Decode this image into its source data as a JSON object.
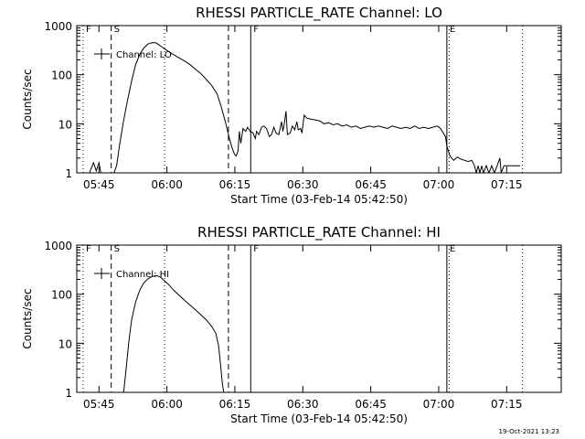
{
  "stamp": "19-Oct-2021 13:23",
  "chart_data": [
    {
      "type": "line",
      "title": "RHESSI PARTICLE_RATE Channel: LO",
      "xlabel": "Start Time (03-Feb-14 05:42:50)",
      "ylabel": "Counts/sec",
      "y_scale": "log",
      "xlim": [
        "05:40:06",
        "07:27:03"
      ],
      "ylim": [
        1,
        1000
      ],
      "xticks": [
        "05:45",
        "06:00",
        "06:15",
        "06:30",
        "06:45",
        "07:00",
        "07:15"
      ],
      "yticks": [
        "1",
        "10",
        "100",
        "1000"
      ],
      "legend": {
        "entry": "Channel: LO",
        "position": "top-left"
      },
      "markers": [
        {
          "label": "F",
          "time": "05:41:30",
          "style": "dotted",
          "text": "F"
        },
        {
          "label": "S",
          "time": "05:47:42",
          "style": "dashed",
          "text": "S"
        },
        {
          "label": "",
          "time": "05:59:30",
          "style": "dotted",
          "text": ""
        },
        {
          "label": "",
          "time": "06:13:35",
          "style": "dashed",
          "text": ""
        },
        {
          "label": "F",
          "time": "06:18:30",
          "style": "solid",
          "text": "F"
        },
        {
          "label": "E",
          "time": "07:01:48",
          "style": "solid",
          "text": "E"
        },
        {
          "label": "",
          "time": "07:02:18",
          "style": "dotted",
          "text": ""
        },
        {
          "label": "",
          "time": "07:18:30",
          "style": "dotted",
          "text": ""
        }
      ],
      "series": [
        {
          "name": "Channel: LO",
          "points": [
            [
              "05:42:54",
              1.0
            ],
            [
              "05:43:48",
              1.6
            ],
            [
              "05:44:24",
              1.1
            ],
            [
              "05:45:00",
              1.6
            ],
            [
              "05:45:36",
              0.8
            ],
            [
              "05:46:30",
              1.0
            ],
            [
              "05:47:24",
              0.8
            ],
            [
              "05:47:42",
              0.8
            ],
            [
              "05:48:18",
              1.0
            ],
            [
              "05:48:54",
              1.4
            ],
            [
              "05:49:30",
              3.5
            ],
            [
              "05:50:24",
              11
            ],
            [
              "05:51:18",
              30
            ],
            [
              "05:52:12",
              75
            ],
            [
              "05:53:06",
              160
            ],
            [
              "05:54:00",
              260
            ],
            [
              "05:54:54",
              350
            ],
            [
              "05:55:48",
              420
            ],
            [
              "05:56:42",
              450
            ],
            [
              "05:57:36",
              445
            ],
            [
              "05:58:30",
              390
            ],
            [
              "05:59:24",
              340
            ],
            [
              "06:00:18",
              300
            ],
            [
              "06:01:30",
              255
            ],
            [
              "06:02:42",
              220
            ],
            [
              "06:03:54",
              190
            ],
            [
              "06:05:06",
              160
            ],
            [
              "06:06:18",
              130
            ],
            [
              "06:07:30",
              105
            ],
            [
              "06:08:42",
              80
            ],
            [
              "06:09:54",
              60
            ],
            [
              "06:11:06",
              40
            ],
            [
              "06:12:00",
              22
            ],
            [
              "06:12:54",
              11
            ],
            [
              "06:13:48",
              5
            ],
            [
              "06:14:24",
              3.2
            ],
            [
              "06:14:54",
              2.4
            ],
            [
              "06:15:18",
              2.2
            ],
            [
              "06:15:42",
              2.8
            ],
            [
              "06:16:00",
              7
            ],
            [
              "06:16:18",
              4
            ],
            [
              "06:16:48",
              8
            ],
            [
              "06:17:24",
              7
            ],
            [
              "06:17:48",
              8.5
            ],
            [
              "06:18:24",
              7
            ],
            [
              "06:19:00",
              6.5
            ],
            [
              "06:19:30",
              5
            ],
            [
              "06:19:48",
              7
            ],
            [
              "06:20:18",
              6
            ],
            [
              "06:20:54",
              8.5
            ],
            [
              "06:21:24",
              9
            ],
            [
              "06:22:00",
              8
            ],
            [
              "06:22:36",
              5.5
            ],
            [
              "06:23:06",
              6
            ],
            [
              "06:23:36",
              8.5
            ],
            [
              "06:24:06",
              6.5
            ],
            [
              "06:24:42",
              6
            ],
            [
              "06:25:18",
              11
            ],
            [
              "06:25:36",
              7
            ],
            [
              "06:25:54",
              10
            ],
            [
              "06:26:18",
              18
            ],
            [
              "06:26:36",
              6
            ],
            [
              "06:27:12",
              6.5
            ],
            [
              "06:27:42",
              9
            ],
            [
              "06:28:12",
              7.5
            ],
            [
              "06:28:42",
              11
            ],
            [
              "06:29:00",
              7.5
            ],
            [
              "06:29:30",
              8
            ],
            [
              "06:29:48",
              6.5
            ],
            [
              "06:30:18",
              15
            ],
            [
              "06:30:54",
              13
            ],
            [
              "06:31:42",
              12.5
            ],
            [
              "06:32:42",
              12
            ],
            [
              "06:33:42",
              11.5
            ],
            [
              "06:34:42",
              10
            ],
            [
              "06:35:42",
              10.5
            ],
            [
              "06:36:42",
              9.5
            ],
            [
              "06:37:42",
              10
            ],
            [
              "06:38:42",
              9
            ],
            [
              "06:39:42",
              9.5
            ],
            [
              "06:40:42",
              8.5
            ],
            [
              "06:41:42",
              9
            ],
            [
              "06:42:42",
              8
            ],
            [
              "06:43:42",
              8.5
            ],
            [
              "06:44:42",
              9
            ],
            [
              "06:45:42",
              8.5
            ],
            [
              "06:46:42",
              9
            ],
            [
              "06:47:42",
              8.5
            ],
            [
              "06:48:42",
              8
            ],
            [
              "06:49:42",
              9
            ],
            [
              "06:50:42",
              8.5
            ],
            [
              "06:51:42",
              8
            ],
            [
              "06:52:42",
              8.5
            ],
            [
              "06:53:42",
              8
            ],
            [
              "06:54:42",
              9
            ],
            [
              "06:55:42",
              8
            ],
            [
              "06:56:42",
              8.5
            ],
            [
              "06:57:42",
              8
            ],
            [
              "06:58:42",
              8.5
            ],
            [
              "06:59:42",
              9
            ],
            [
              "07:00:24",
              8
            ],
            [
              "07:01:00",
              6.5
            ],
            [
              "07:01:30",
              5.5
            ],
            [
              "07:01:48",
              3.5
            ],
            [
              "07:02:30",
              2.2
            ],
            [
              "07:03:18",
              1.8
            ],
            [
              "07:04:06",
              2.1
            ],
            [
              "07:04:54",
              1.9
            ],
            [
              "07:05:42",
              1.8
            ],
            [
              "07:06:30",
              1.7
            ],
            [
              "07:07:18",
              1.8
            ],
            [
              "07:07:54",
              1.4
            ],
            [
              "07:08:18",
              1.0
            ],
            [
              "07:08:42",
              1.4
            ],
            [
              "07:09:06",
              1.0
            ],
            [
              "07:09:30",
              1.4
            ],
            [
              "07:09:54",
              1.0
            ],
            [
              "07:10:30",
              1.4
            ],
            [
              "07:11:06",
              1.0
            ],
            [
              "07:11:42",
              1.4
            ],
            [
              "07:12:18",
              1.0
            ],
            [
              "07:12:54",
              1.4
            ],
            [
              "07:13:30",
              2.0
            ],
            [
              "07:13:48",
              1.0
            ],
            [
              "07:14:24",
              1.4
            ],
            [
              "07:15:00",
              1.4
            ],
            [
              "07:16:00",
              1.4
            ],
            [
              "07:17:00",
              1.4
            ],
            [
              "07:18:00",
              1.4
            ]
          ]
        }
      ]
    },
    {
      "type": "line",
      "title": "RHESSI PARTICLE_RATE Channel: HI",
      "xlabel": "Start Time (03-Feb-14 05:42:50)",
      "ylabel": "Counts/sec",
      "y_scale": "log",
      "xlim": [
        "05:40:06",
        "07:27:03"
      ],
      "ylim": [
        1,
        1000
      ],
      "xticks": [
        "05:45",
        "06:00",
        "06:15",
        "06:30",
        "06:45",
        "07:00",
        "07:15"
      ],
      "yticks": [
        "1",
        "10",
        "100",
        "1000"
      ],
      "legend": {
        "entry": "Channel: HI",
        "position": "top-left"
      },
      "markers": [
        {
          "label": "F",
          "time": "05:41:30",
          "style": "dotted",
          "text": "F"
        },
        {
          "label": "S",
          "time": "05:47:42",
          "style": "dashed",
          "text": "S"
        },
        {
          "label": "",
          "time": "05:59:30",
          "style": "dotted",
          "text": ""
        },
        {
          "label": "",
          "time": "06:13:35",
          "style": "dashed",
          "text": ""
        },
        {
          "label": "F",
          "time": "06:18:30",
          "style": "solid",
          "text": "F"
        },
        {
          "label": "E",
          "time": "07:01:48",
          "style": "solid",
          "text": "E"
        },
        {
          "label": "",
          "time": "07:02:18",
          "style": "dotted",
          "text": ""
        },
        {
          "label": "",
          "time": "07:18:30",
          "style": "dotted",
          "text": ""
        }
      ],
      "series": [
        {
          "name": "Channel: HI",
          "points": [
            [
              "05:50:24",
              0.9
            ],
            [
              "05:51:00",
              3
            ],
            [
              "05:51:36",
              11
            ],
            [
              "05:52:12",
              30
            ],
            [
              "05:53:06",
              70
            ],
            [
              "05:54:00",
              120
            ],
            [
              "05:54:54",
              170
            ],
            [
              "05:55:48",
              205
            ],
            [
              "05:56:42",
              230
            ],
            [
              "05:57:36",
              240
            ],
            [
              "05:58:30",
              225
            ],
            [
              "05:59:24",
              190
            ],
            [
              "06:00:18",
              160
            ],
            [
              "06:01:30",
              120
            ],
            [
              "06:02:42",
              95
            ],
            [
              "06:03:54",
              75
            ],
            [
              "06:05:06",
              60
            ],
            [
              "06:06:18",
              48
            ],
            [
              "06:07:30",
              38
            ],
            [
              "06:08:42",
              30
            ],
            [
              "06:09:54",
              22
            ],
            [
              "06:10:48",
              16
            ],
            [
              "06:11:24",
              9
            ],
            [
              "06:11:48",
              4
            ],
            [
              "06:12:12",
              1.6
            ],
            [
              "06:12:36",
              0.9
            ]
          ]
        }
      ]
    }
  ]
}
